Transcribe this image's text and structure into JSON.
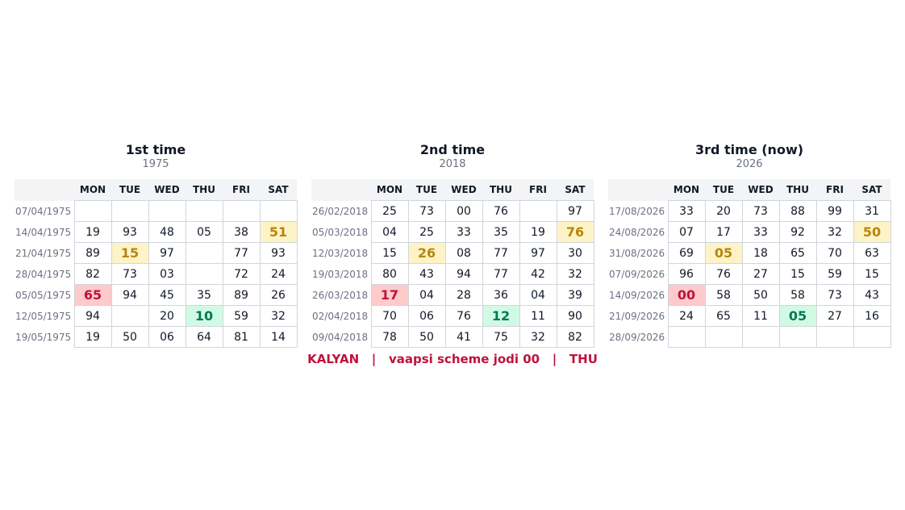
{
  "weekdays": [
    "MON",
    "TUE",
    "WED",
    "THU",
    "FRI",
    "SAT"
  ],
  "panels": [
    {
      "title": "1st time",
      "year": "1975",
      "rows": [
        {
          "date": "07/04/1975",
          "cells": [
            null,
            null,
            null,
            null,
            null,
            null
          ]
        },
        {
          "date": "14/04/1975",
          "cells": [
            "19",
            "93",
            "48",
            "05",
            "38",
            {
              "text": "51",
              "highlight": "yellow"
            }
          ]
        },
        {
          "date": "21/04/1975",
          "cells": [
            "89",
            {
              "text": "15",
              "highlight": "yellow"
            },
            "97",
            null,
            "77",
            "93"
          ]
        },
        {
          "date": "28/04/1975",
          "cells": [
            "82",
            "73",
            "03",
            null,
            "72",
            "24"
          ]
        },
        {
          "date": "05/05/1975",
          "cells": [
            {
              "text": "65",
              "highlight": "red"
            },
            "94",
            "45",
            "35",
            "89",
            "26"
          ]
        },
        {
          "date": "12/05/1975",
          "cells": [
            "94",
            null,
            "20",
            {
              "text": "10",
              "highlight": "green"
            },
            "59",
            "32"
          ]
        },
        {
          "date": "19/05/1975",
          "cells": [
            "19",
            "50",
            "06",
            "64",
            "81",
            "14"
          ]
        }
      ]
    },
    {
      "title": "2nd time",
      "year": "2018",
      "rows": [
        {
          "date": "26/02/2018",
          "cells": [
            "25",
            "73",
            "00",
            "76",
            null,
            "97"
          ]
        },
        {
          "date": "05/03/2018",
          "cells": [
            "04",
            "25",
            "33",
            "35",
            "19",
            {
              "text": "76",
              "highlight": "yellow"
            }
          ]
        },
        {
          "date": "12/03/2018",
          "cells": [
            "15",
            {
              "text": "26",
              "highlight": "yellow"
            },
            "08",
            "77",
            "97",
            "30"
          ]
        },
        {
          "date": "19/03/2018",
          "cells": [
            "80",
            "43",
            "94",
            "77",
            "42",
            "32"
          ]
        },
        {
          "date": "26/03/2018",
          "cells": [
            {
              "text": "17",
              "highlight": "red"
            },
            "04",
            "28",
            "36",
            "04",
            "39"
          ]
        },
        {
          "date": "02/04/2018",
          "cells": [
            "70",
            "06",
            "76",
            {
              "text": "12",
              "highlight": "green"
            },
            "11",
            "90"
          ]
        },
        {
          "date": "09/04/2018",
          "cells": [
            "78",
            "50",
            "41",
            "75",
            "32",
            "82"
          ]
        }
      ]
    },
    {
      "title": "3rd time  (now)",
      "year": "2026",
      "rows": [
        {
          "date": "17/08/2026",
          "cells": [
            "33",
            "20",
            "73",
            "88",
            "99",
            "31"
          ]
        },
        {
          "date": "24/08/2026",
          "cells": [
            "07",
            "17",
            "33",
            "92",
            "32",
            {
              "text": "50",
              "highlight": "yellow"
            }
          ]
        },
        {
          "date": "31/08/2026",
          "cells": [
            "69",
            {
              "text": "05",
              "highlight": "yellow"
            },
            "18",
            "65",
            "70",
            "63"
          ]
        },
        {
          "date": "07/09/2026",
          "cells": [
            "96",
            "76",
            "27",
            "15",
            "59",
            "15"
          ]
        },
        {
          "date": "14/09/2026",
          "cells": [
            {
              "text": "00",
              "highlight": "red"
            },
            "58",
            "50",
            "58",
            "73",
            "43"
          ]
        },
        {
          "date": "21/09/2026",
          "cells": [
            "24",
            "65",
            "11",
            {
              "text": "05",
              "highlight": "green"
            },
            "27",
            "16"
          ]
        },
        {
          "date": "28/09/2026",
          "cells": [
            null,
            null,
            null,
            null,
            null,
            null
          ]
        }
      ]
    }
  ],
  "footer": "KALYAN   |   vaapsi scheme jodi 00   |   THU"
}
